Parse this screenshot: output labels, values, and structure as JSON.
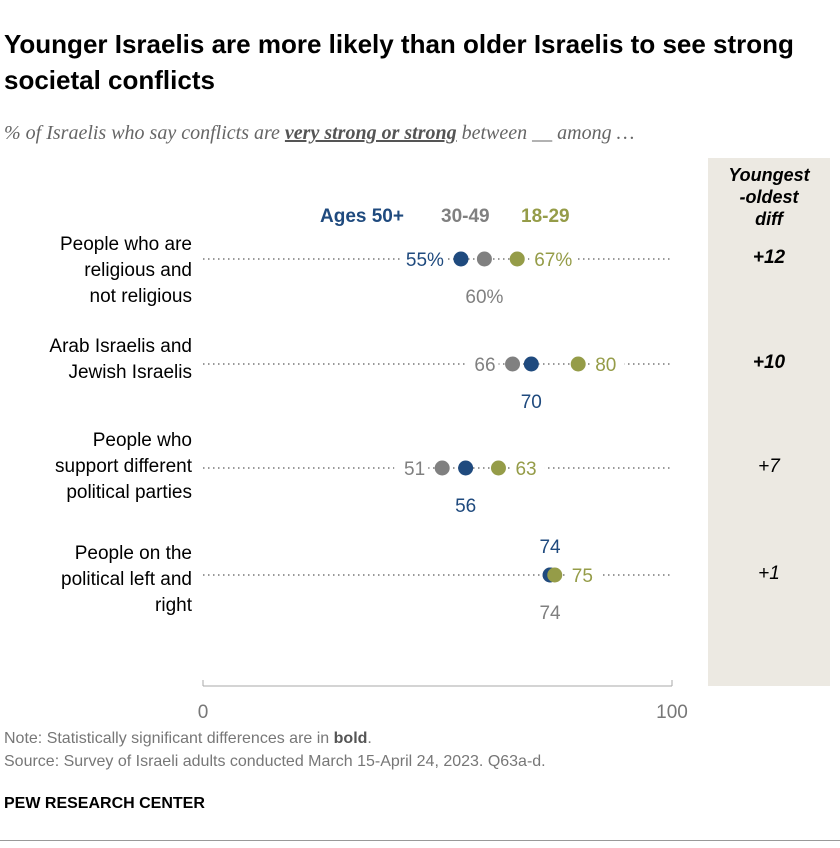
{
  "title": "Younger Israelis are more likely than older Israelis to see strong societal conflicts",
  "subtitle": {
    "before": "% of Israelis who say conflicts are ",
    "emphasis": "very strong or strong",
    "after": " between __ among …"
  },
  "diff_header": [
    "Youngest",
    "-oldest",
    "diff"
  ],
  "note": "Note: Statistically significant differences are in ",
  "note_bold": "bold",
  "note_end": ".",
  "source": "Source: Survey of Israeli adults conducted March 15-April 24, 2023. Q63a-d.",
  "brand": "PEW RESEARCH CENTER",
  "colors": {
    "ages_50_plus": "#1f4a7e",
    "ages_30_49": "#808080",
    "ages_18_29": "#959c48",
    "diff_panel": "#ece9e2"
  },
  "chart_data": {
    "type": "dot",
    "xlim": [
      0,
      100
    ],
    "x_ticks": [
      "0",
      "100"
    ],
    "legend": [
      "Ages 50+",
      "30-49",
      "18-29"
    ],
    "categories": [
      [
        "People who are",
        "religious and",
        "not religious"
      ],
      [
        "Arab Israelis and",
        "Jewish Israelis"
      ],
      [
        "People who",
        "support different",
        "political parties"
      ],
      [
        "People on the",
        "political left and",
        "right"
      ]
    ],
    "series": [
      {
        "name": "Ages 50+",
        "values": [
          55,
          70,
          56,
          74
        ],
        "labels": [
          "55%",
          "70",
          "56",
          "74"
        ]
      },
      {
        "name": "30-49",
        "values": [
          60,
          66,
          51,
          74
        ],
        "labels": [
          "60%",
          "66",
          "51",
          "74"
        ]
      },
      {
        "name": "18-29",
        "values": [
          67,
          80,
          63,
          75
        ],
        "labels": [
          "67%",
          "80",
          "63",
          "75"
        ]
      }
    ],
    "diff": [
      {
        "text": "+12",
        "significant": true
      },
      {
        "text": "+10",
        "significant": true
      },
      {
        "text": "+7",
        "significant": false
      },
      {
        "text": "+1",
        "significant": false
      }
    ]
  }
}
